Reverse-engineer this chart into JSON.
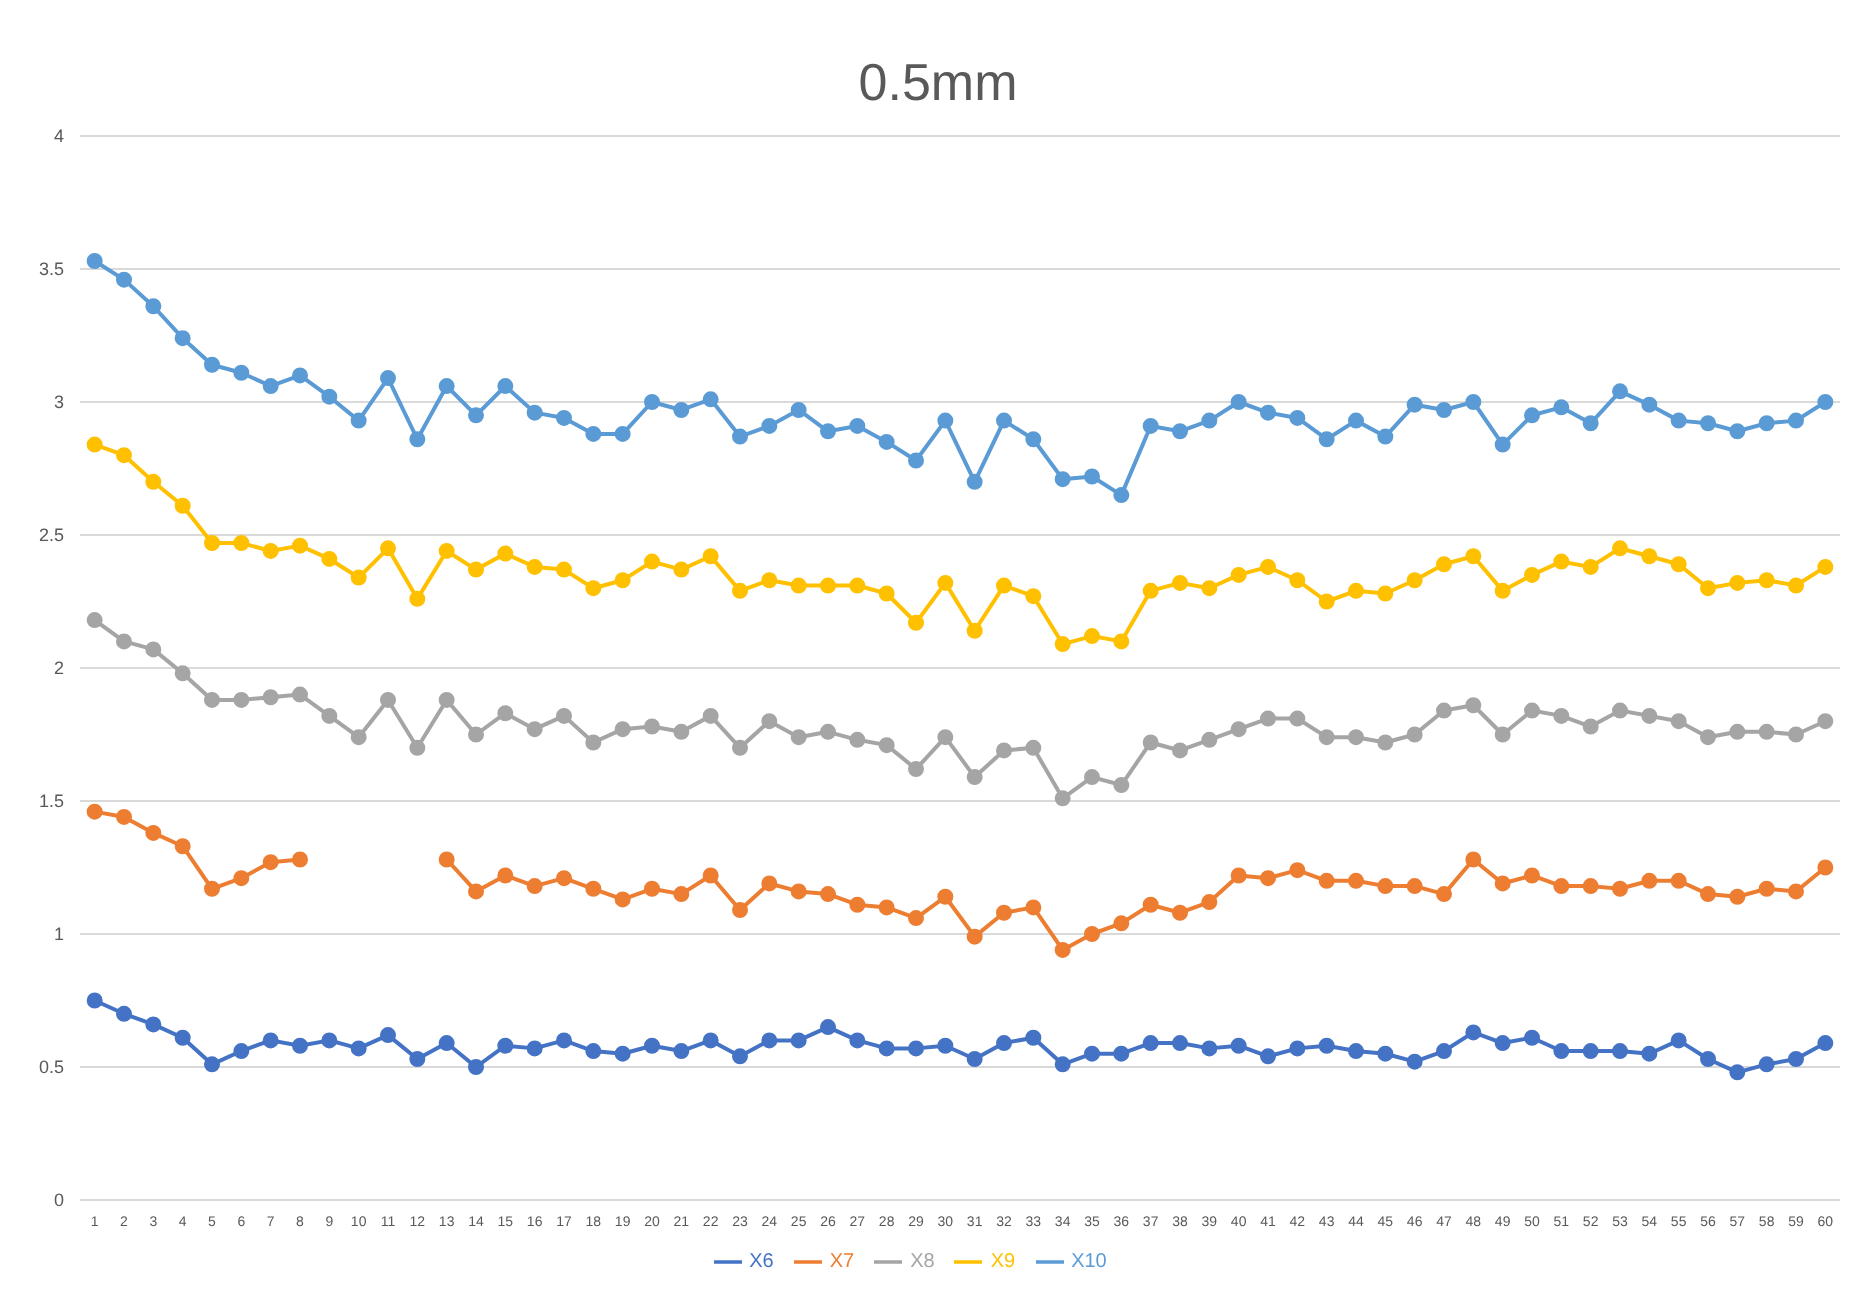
{
  "chart_data": {
    "type": "line",
    "title": "0.5mm",
    "x": [
      1,
      2,
      3,
      4,
      5,
      6,
      7,
      8,
      9,
      10,
      11,
      12,
      13,
      14,
      15,
      16,
      17,
      18,
      19,
      20,
      21,
      22,
      23,
      24,
      25,
      26,
      27,
      28,
      29,
      30,
      31,
      32,
      33,
      34,
      35,
      36,
      37,
      38,
      39,
      40,
      41,
      42,
      43,
      44,
      45,
      46,
      47,
      48,
      49,
      50,
      51,
      52,
      53,
      54,
      55,
      56,
      57,
      58,
      59,
      60
    ],
    "xlim": [
      0.5,
      60.5
    ],
    "xticks": [
      1,
      2,
      3,
      4,
      5,
      6,
      7,
      8,
      9,
      10,
      11,
      12,
      13,
      14,
      15,
      16,
      17,
      18,
      19,
      20,
      21,
      22,
      23,
      24,
      25,
      26,
      27,
      28,
      29,
      30,
      31,
      32,
      33,
      34,
      35,
      36,
      37,
      38,
      39,
      40,
      41,
      42,
      43,
      44,
      45,
      46,
      47,
      48,
      49,
      50,
      51,
      52,
      53,
      54,
      55,
      56,
      57,
      58,
      59,
      60
    ],
    "series": [
      {
        "name": "X6",
        "color": "#4472c4",
        "values": [
          0.75,
          0.7,
          0.66,
          0.61,
          0.51,
          0.56,
          0.6,
          0.58,
          0.6,
          0.57,
          0.62,
          0.53,
          0.59,
          0.5,
          0.58,
          0.57,
          0.6,
          0.56,
          0.55,
          0.58,
          0.56,
          0.6,
          0.54,
          0.6,
          0.6,
          0.65,
          0.6,
          0.57,
          0.57,
          0.58,
          0.53,
          0.59,
          0.61,
          0.51,
          0.55,
          0.55,
          0.59,
          0.59,
          0.57,
          0.58,
          0.54,
          0.57,
          0.58,
          0.56,
          0.55,
          0.52,
          0.56,
          0.63,
          0.59,
          0.61,
          0.56,
          0.56,
          0.56,
          0.55,
          0.6,
          0.53,
          0.48,
          0.51,
          0.53,
          0.59
        ]
      },
      {
        "name": "X7",
        "color": "#ed7d31",
        "values": [
          1.46,
          1.44,
          1.38,
          1.33,
          1.17,
          1.21,
          1.27,
          1.28,
          null,
          null,
          null,
          null,
          1.28,
          1.16,
          1.22,
          1.18,
          1.21,
          1.17,
          1.13,
          1.17,
          1.15,
          1.22,
          1.09,
          1.19,
          1.16,
          1.15,
          1.11,
          1.1,
          1.06,
          1.14,
          0.99,
          1.08,
          1.1,
          0.94,
          1.0,
          1.04,
          1.11,
          1.08,
          1.12,
          1.22,
          1.21,
          1.24,
          1.2,
          1.2,
          1.18,
          1.18,
          1.15,
          1.28,
          1.19,
          1.22,
          1.18,
          1.18,
          1.17,
          1.2,
          1.2,
          1.15,
          1.14,
          1.17,
          1.16,
          1.25
        ]
      },
      {
        "name": "X8",
        "color": "#a5a5a5",
        "values": [
          2.18,
          2.1,
          2.07,
          1.98,
          1.88,
          1.88,
          1.89,
          1.9,
          1.82,
          1.74,
          1.88,
          1.7,
          1.88,
          1.75,
          1.83,
          1.77,
          1.82,
          1.72,
          1.77,
          1.78,
          1.76,
          1.82,
          1.7,
          1.8,
          1.74,
          1.76,
          1.73,
          1.71,
          1.62,
          1.74,
          1.59,
          1.69,
          1.7,
          1.51,
          1.59,
          1.56,
          1.72,
          1.69,
          1.73,
          1.77,
          1.81,
          1.81,
          1.74,
          1.74,
          1.72,
          1.75,
          1.84,
          1.86,
          1.75,
          1.84,
          1.82,
          1.78,
          1.84,
          1.82,
          1.8,
          1.74,
          1.76,
          1.76,
          1.75,
          1.8
        ]
      },
      {
        "name": "X9",
        "color": "#ffc000",
        "values": [
          2.84,
          2.8,
          2.7,
          2.61,
          2.47,
          2.47,
          2.44,
          2.46,
          2.41,
          2.34,
          2.45,
          2.26,
          2.44,
          2.37,
          2.43,
          2.38,
          2.37,
          2.3,
          2.33,
          2.4,
          2.37,
          2.42,
          2.29,
          2.33,
          2.31,
          2.31,
          2.31,
          2.28,
          2.17,
          2.32,
          2.14,
          2.31,
          2.27,
          2.09,
          2.12,
          2.1,
          2.29,
          2.32,
          2.3,
          2.35,
          2.38,
          2.33,
          2.25,
          2.29,
          2.28,
          2.33,
          2.39,
          2.42,
          2.29,
          2.35,
          2.4,
          2.38,
          2.45,
          2.42,
          2.39,
          2.3,
          2.32,
          2.33,
          2.31,
          2.38
        ]
      },
      {
        "name": "X10",
        "color": "#5b9bd5",
        "values": [
          3.53,
          3.46,
          3.36,
          3.24,
          3.14,
          3.11,
          3.06,
          3.1,
          3.02,
          2.93,
          3.09,
          2.86,
          3.06,
          2.95,
          3.06,
          2.96,
          2.94,
          2.88,
          2.88,
          3.0,
          2.97,
          3.01,
          2.87,
          2.91,
          2.97,
          2.89,
          2.91,
          2.85,
          2.78,
          2.93,
          2.7,
          2.93,
          2.86,
          2.71,
          2.72,
          2.65,
          2.91,
          2.89,
          2.93,
          3.0,
          2.96,
          2.94,
          2.86,
          2.93,
          2.87,
          2.99,
          2.97,
          3.0,
          2.84,
          2.95,
          2.98,
          2.92,
          3.04,
          2.99,
          2.93,
          2.92,
          2.89,
          2.92,
          2.93,
          3.0
        ]
      }
    ],
    "ylim": [
      0,
      4
    ],
    "yticks": [
      0,
      0.5,
      1,
      1.5,
      2,
      2.5,
      3,
      3.5,
      4
    ],
    "grid": "y",
    "legend": "bottom",
    "marker": "circle",
    "line_style": "solid"
  }
}
